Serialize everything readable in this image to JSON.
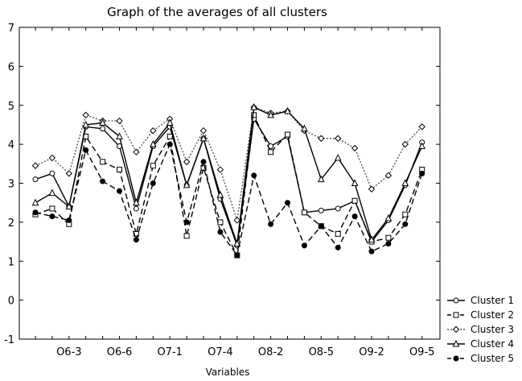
{
  "chart_data": {
    "type": "line",
    "title": "Graph of the averages of all clusters",
    "xlabel": "Variables",
    "ylabel": "",
    "ylim": [
      -1,
      7
    ],
    "yticks": [
      -1,
      0,
      1,
      2,
      3,
      4,
      5,
      6,
      7
    ],
    "grid": false,
    "legend_position": "bottom-right",
    "x_tick_labels": [
      {
        "index": 2,
        "label": "O6-3"
      },
      {
        "index": 5,
        "label": "O6-6"
      },
      {
        "index": 8,
        "label": "O7-1"
      },
      {
        "index": 11,
        "label": "O7-4"
      },
      {
        "index": 14,
        "label": "O8-2"
      },
      {
        "index": 17,
        "label": "O8-5"
      },
      {
        "index": 20,
        "label": "O9-2"
      },
      {
        "index": 23,
        "label": "O9-5"
      }
    ],
    "x_count": 24,
    "series": [
      {
        "name": "Cluster 1",
        "marker": "circle",
        "dash": "solid",
        "values": [
          3.1,
          3.25,
          2.4,
          4.45,
          4.4,
          3.95,
          2.35,
          3.95,
          4.45,
          2.95,
          4.15,
          2.6,
          1.4,
          4.65,
          3.95,
          4.2,
          2.25,
          2.3,
          2.35,
          2.55,
          1.5,
          2.05,
          2.95,
          4.05
        ]
      },
      {
        "name": "Cluster 2",
        "marker": "square",
        "dash": "dashed",
        "values": [
          2.2,
          2.35,
          1.95,
          4.2,
          3.55,
          3.35,
          1.7,
          3.45,
          4.2,
          1.65,
          3.4,
          2.0,
          1.15,
          4.75,
          3.8,
          4.25,
          2.25,
          1.9,
          1.7,
          2.55,
          1.5,
          1.6,
          2.2,
          3.35
        ]
      },
      {
        "name": "Cluster 3",
        "marker": "diamond",
        "dash": "dotted",
        "values": [
          3.45,
          3.65,
          3.25,
          4.75,
          4.6,
          4.6,
          3.8,
          4.35,
          4.65,
          3.55,
          4.35,
          3.35,
          2.05,
          4.95,
          4.8,
          4.85,
          4.35,
          4.15,
          4.15,
          3.9,
          2.85,
          3.2,
          4.0,
          4.45
        ]
      },
      {
        "name": "Cluster 4",
        "marker": "triangle",
        "dash": "solid",
        "values": [
          2.5,
          2.75,
          2.4,
          4.5,
          4.55,
          4.2,
          2.5,
          4.0,
          4.55,
          2.95,
          4.15,
          2.7,
          1.45,
          4.95,
          4.75,
          4.85,
          4.4,
          3.1,
          3.65,
          3.0,
          1.55,
          2.1,
          3.0,
          3.95
        ]
      },
      {
        "name": "Cluster 5",
        "marker": "filled-circle",
        "dash": "dashed",
        "values": [
          2.25,
          2.15,
          2.05,
          3.85,
          3.05,
          2.8,
          1.55,
          3.0,
          4.0,
          2.0,
          3.55,
          1.75,
          1.15,
          3.2,
          1.95,
          2.5,
          1.4,
          1.9,
          1.35,
          2.15,
          1.25,
          1.45,
          1.95,
          3.25
        ]
      }
    ]
  }
}
